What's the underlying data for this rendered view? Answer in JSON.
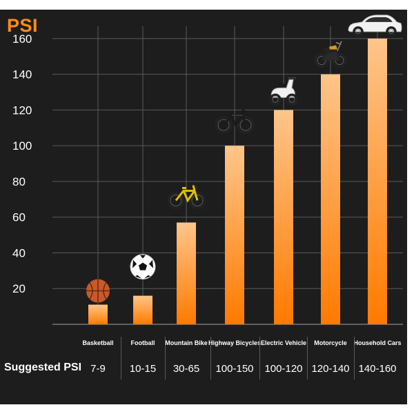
{
  "chart_data": {
    "type": "bar",
    "unit_label": "PSI",
    "categories": [
      "Basketball",
      "Football",
      "Mountain Bike",
      "Highway Bicycles",
      "Electric Vehicle",
      "Motorcycle",
      "Household Cars"
    ],
    "values": [
      11,
      16,
      57,
      100,
      120,
      140,
      160
    ],
    "y_ticks": [
      20,
      40,
      60,
      80,
      100,
      120,
      140,
      160
    ],
    "ylim": [
      0,
      170
    ],
    "grid": true,
    "bar_icons": [
      "basketball-icon",
      "football-icon",
      "mountain-bike-icon",
      "road-bicycle-icon",
      "electric-scooter-icon",
      "motorcycle-icon",
      "car-icon"
    ],
    "suggested": {
      "title": "Suggested PSI",
      "ranges": [
        "7-9",
        "10-15",
        "30-65",
        "100-150",
        "100-120",
        "120-140",
        "140-160"
      ]
    },
    "colors": {
      "background": "#1d1d1d",
      "bar_top": "#ffc58a",
      "bar_bottom": "#ff7a00",
      "accent": "#ff8c1a",
      "grid": "#5a5a5a"
    }
  }
}
